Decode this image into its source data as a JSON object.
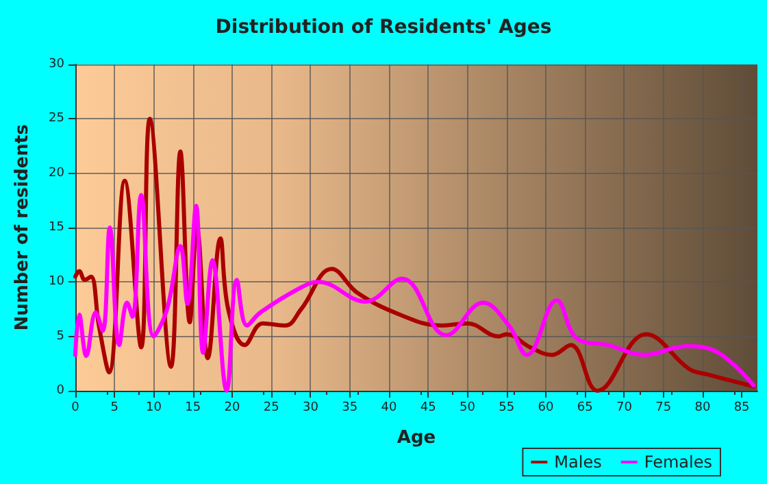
{
  "chart_data": {
    "type": "line",
    "title": "Distribution of Residents' Ages",
    "xlabel": "Age",
    "ylabel": "Number of residents",
    "xlim": [
      0,
      87
    ],
    "xticks": [
      0,
      5,
      10,
      15,
      20,
      25,
      30,
      35,
      40,
      45,
      50,
      55,
      60,
      65,
      70,
      75,
      80,
      85
    ],
    "ylim": [
      0,
      30
    ],
    "yticks": [
      0,
      5,
      10,
      15,
      20,
      25,
      30
    ],
    "grid": true,
    "legend": "bottom right",
    "marker": "none",
    "line_style": "solid",
    "series": [
      {
        "name": "Males",
        "color": "#aa0000",
        "x": [
          0,
          0.5,
          1.2,
          2,
          3,
          4.3,
          6.3,
          8.4,
          9.5,
          12.2,
          13.4,
          14.6,
          15.5,
          16.9,
          18.5,
          19.5,
          21.6,
          23.9,
          26.8,
          28.8,
          32.7,
          36,
          41.4,
          46.6,
          50,
          54,
          55,
          58,
          60.8,
          63.2,
          66.6,
          72.8,
          78.3,
          80.6,
          86.5
        ],
        "values": [
          10.5,
          11,
          10.2,
          10.5,
          6,
          1.7,
          19.3,
          4,
          25,
          2.2,
          22,
          6.3,
          15,
          3,
          14,
          7.5,
          4.2,
          6.2,
          6,
          7.5,
          11.2,
          9,
          7,
          6,
          6.2,
          5,
          5.2,
          4,
          3.3,
          4.2,
          0,
          5.2,
          2,
          1.5,
          0.4
        ]
      },
      {
        "name": "Females",
        "color": "#ff00ff",
        "x": [
          0,
          0.5,
          1.4,
          2.6,
          3.5,
          4.4,
          5.6,
          6.6,
          7.3,
          8.4,
          10,
          11.7,
          13.4,
          14.3,
          15.4,
          16.3,
          17.5,
          19.3,
          20.6,
          21.9,
          23.6,
          28.8,
          31,
          37,
          41.7,
          47.3,
          52,
          55.3,
          57.6,
          61.4,
          64,
          68,
          72.6,
          77.9,
          82,
          86.5
        ],
        "values": [
          3.3,
          7,
          3.2,
          7.2,
          5.5,
          15,
          4.2,
          8.1,
          6.8,
          18,
          5,
          7.5,
          13.3,
          8,
          17,
          3.5,
          12,
          0,
          10.2,
          6,
          7.2,
          9.5,
          10,
          8.2,
          10.3,
          5.1,
          8.1,
          6,
          3.3,
          8.3,
          4.8,
          4.2,
          3.3,
          4.1,
          3.5,
          0.5
        ]
      }
    ]
  }
}
